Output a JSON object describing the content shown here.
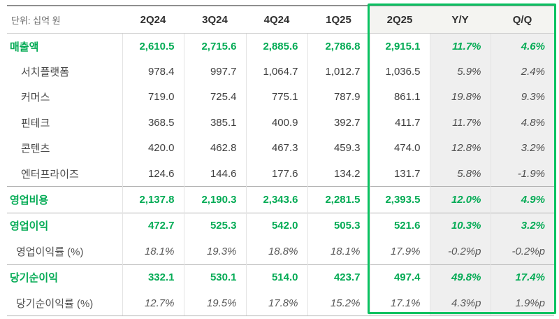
{
  "unit_label": "단위: 십억 원",
  "colors": {
    "accent_green": "#04ab55",
    "box_border": "#09c261",
    "gray_column_bg": "#efefef",
    "box_header_bg": "#f4f4f1"
  },
  "chart_data": {
    "type": "table",
    "unit": "단위: 십억 원",
    "columns": [
      "2Q24",
      "3Q24",
      "4Q24",
      "1Q25",
      "2Q25",
      "Y/Y",
      "Q/Q"
    ],
    "highlight_columns": [
      "2Q25",
      "Y/Y",
      "Q/Q"
    ],
    "rows": [
      {
        "label": "매출액",
        "style": "section",
        "section_start": false,
        "values": [
          "2,610.5",
          "2,715.6",
          "2,885.6",
          "2,786.8",
          "2,915.1",
          "11.7%",
          "4.6%"
        ]
      },
      {
        "label": "서치플랫폼",
        "style": "sub",
        "section_start": false,
        "values": [
          "978.4",
          "997.7",
          "1,064.7",
          "1,012.7",
          "1,036.5",
          "5.9%",
          "2.4%"
        ]
      },
      {
        "label": "커머스",
        "style": "sub",
        "section_start": false,
        "values": [
          "719.0",
          "725.4",
          "775.1",
          "787.9",
          "861.1",
          "19.8%",
          "9.3%"
        ]
      },
      {
        "label": "핀테크",
        "style": "sub",
        "section_start": false,
        "values": [
          "368.5",
          "385.1",
          "400.9",
          "392.7",
          "411.7",
          "11.7%",
          "4.8%"
        ]
      },
      {
        "label": "콘텐츠",
        "style": "sub",
        "section_start": false,
        "values": [
          "420.0",
          "462.8",
          "467.3",
          "459.3",
          "474.0",
          "12.8%",
          "3.2%"
        ]
      },
      {
        "label": "엔터프라이즈",
        "style": "sub",
        "section_start": false,
        "values": [
          "124.6",
          "144.6",
          "177.6",
          "134.2",
          "131.7",
          "5.8%",
          "-1.9%"
        ]
      },
      {
        "label": "영업비용",
        "style": "section",
        "section_start": true,
        "values": [
          "2,137.8",
          "2,190.3",
          "2,343.6",
          "2,281.5",
          "2,393.5",
          "12.0%",
          "4.9%"
        ]
      },
      {
        "label": "영업이익",
        "style": "section",
        "section_start": true,
        "values": [
          "472.7",
          "525.3",
          "542.0",
          "505.3",
          "521.6",
          "10.3%",
          "3.2%"
        ]
      },
      {
        "label": "영업이익률 (%)",
        "style": "ratio",
        "section_start": false,
        "values": [
          "18.1%",
          "19.3%",
          "18.8%",
          "18.1%",
          "17.9%",
          "-0.2%p",
          "-0.2%p"
        ]
      },
      {
        "label": "당기순이익",
        "style": "section",
        "section_start": true,
        "values": [
          "332.1",
          "530.1",
          "514.0",
          "423.7",
          "497.4",
          "49.8%",
          "17.4%"
        ]
      },
      {
        "label": "당기순이익률 (%)",
        "style": "ratio",
        "section_start": false,
        "values": [
          "12.7%",
          "19.5%",
          "17.8%",
          "15.2%",
          "17.1%",
          "4.3%p",
          "1.9%p"
        ]
      }
    ]
  }
}
